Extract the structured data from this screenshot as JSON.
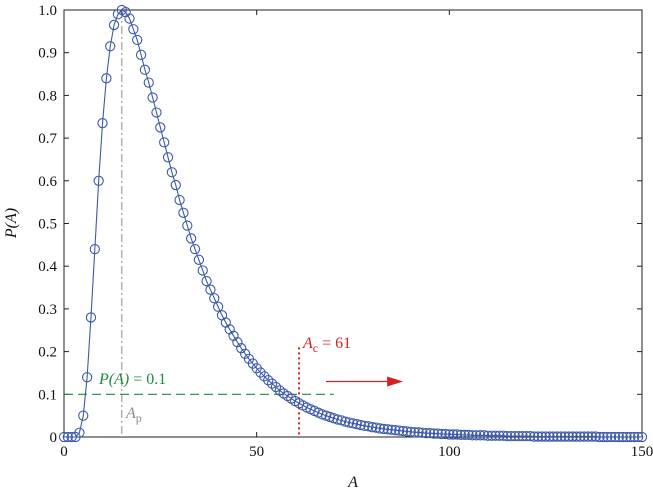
{
  "chart_data": {
    "type": "scatter",
    "xlabel": "A",
    "ylabel": "P(A)",
    "xlim": [
      0,
      150
    ],
    "ylim": [
      0,
      1
    ],
    "x_ticks": [
      "0",
      "50",
      "100",
      "150"
    ],
    "y_ticks": [
      "0",
      "0.1",
      "0.2",
      "0.3",
      "0.4",
      "0.5",
      "0.6",
      "0.7",
      "0.8",
      "0.9",
      "1.0"
    ],
    "grid": false,
    "colors": {
      "series": "#3d5aa8",
      "threshold_line": "#1e8a3c",
      "cutoff_line": "#d62020",
      "peak_line": "#8c8c8c"
    },
    "series": [
      {
        "marker": "circle",
        "line": "solid",
        "x": [
          0,
          1,
          2,
          3,
          4,
          5,
          6,
          7,
          8,
          9,
          10,
          11,
          12,
          13,
          14,
          15,
          16,
          17,
          18,
          19,
          20,
          21,
          22,
          23,
          24,
          25,
          26,
          27,
          28,
          29,
          30,
          31,
          32,
          33,
          34,
          35,
          36,
          37,
          38,
          39,
          40,
          41,
          42,
          43,
          44,
          45,
          46,
          47,
          48,
          49,
          50,
          51,
          52,
          53,
          54,
          55,
          56,
          57,
          58,
          59,
          60,
          61,
          62,
          63,
          64,
          65,
          66,
          67,
          68,
          69,
          70,
          71,
          72,
          73,
          74,
          75,
          76,
          77,
          78,
          79,
          80,
          81,
          82,
          83,
          84,
          85,
          86,
          87,
          88,
          89,
          90,
          91,
          92,
          93,
          94,
          95,
          96,
          97,
          98,
          99,
          100,
          101,
          102,
          103,
          104,
          105,
          106,
          107,
          108,
          109,
          110,
          111,
          112,
          113,
          114,
          115,
          116,
          117,
          118,
          119,
          120,
          121,
          122,
          123,
          124,
          125,
          126,
          127,
          128,
          129,
          130,
          131,
          132,
          133,
          134,
          135,
          136,
          137,
          138,
          139,
          140,
          141,
          142,
          143,
          144,
          145,
          146,
          147,
          148,
          149,
          150
        ],
        "y": [
          0,
          0,
          0,
          0,
          0.01,
          0.05,
          0.14,
          0.28,
          0.44,
          0.6,
          0.735,
          0.84,
          0.915,
          0.965,
          0.99,
          1.0,
          0.995,
          0.98,
          0.955,
          0.93,
          0.895,
          0.86,
          0.83,
          0.795,
          0.76,
          0.725,
          0.69,
          0.655,
          0.62,
          0.59,
          0.555,
          0.525,
          0.495,
          0.465,
          0.44,
          0.415,
          0.39,
          0.365,
          0.345,
          0.325,
          0.305,
          0.285,
          0.268,
          0.252,
          0.237,
          0.222,
          0.208,
          0.195,
          0.183,
          0.172,
          0.161,
          0.151,
          0.142,
          0.133,
          0.125,
          0.117,
          0.109,
          0.102,
          0.096,
          0.09,
          0.084,
          0.079,
          0.074,
          0.069,
          0.065,
          0.061,
          0.057,
          0.053,
          0.05,
          0.047,
          0.044,
          0.041,
          0.039,
          0.036,
          0.034,
          0.032,
          0.03,
          0.028,
          0.026,
          0.025,
          0.023,
          0.022,
          0.02,
          0.019,
          0.018,
          0.017,
          0.016,
          0.015,
          0.014,
          0.013,
          0.012,
          0.011,
          0.011,
          0.01,
          0.009,
          0.009,
          0.008,
          0.008,
          0.007,
          0.007,
          0.006,
          0.006,
          0.006,
          0.005,
          0.005,
          0.005,
          0.004,
          0.004,
          0.004,
          0.004,
          0.003,
          0.003,
          0.003,
          0.003,
          0.003,
          0.002,
          0.002,
          0.002,
          0.002,
          0.002,
          0.002,
          0.002,
          0.001,
          0.001,
          0.001,
          0.001,
          0.001,
          0.001,
          0.001,
          0.001,
          0.001,
          0.001,
          0.001,
          0.001,
          0.001,
          0.001,
          0.001,
          0.001,
          0.001,
          0,
          0,
          0,
          0,
          0,
          0,
          0,
          0,
          0,
          0,
          0,
          0
        ]
      }
    ],
    "annotations": {
      "threshold": {
        "y": 0.1,
        "x_end": 70,
        "label_main": "P(A)",
        "label_value": " = 0.1"
      },
      "cutoff": {
        "x": 61,
        "y_top": 0.21,
        "label_main": "A",
        "label_sub": "c",
        "label_value": " = 61"
      },
      "peak": {
        "x": 15,
        "label_main": "A",
        "label_sub": "p"
      },
      "arrow": {
        "x_start": 68,
        "x_end": 88,
        "y": 0.13
      }
    }
  }
}
